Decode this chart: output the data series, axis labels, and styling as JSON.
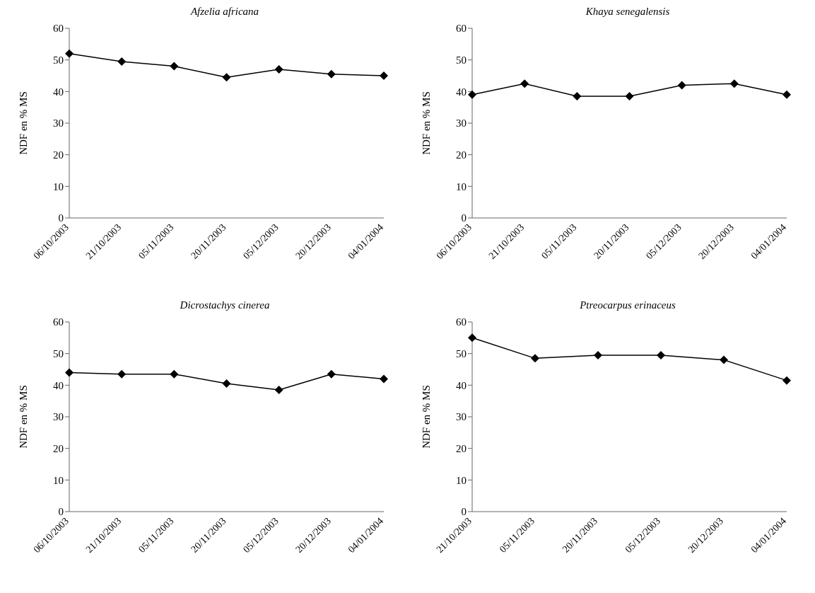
{
  "chart_data": [
    {
      "type": "line",
      "title": "Afzelia africana",
      "ylabel": "NDF en % MS",
      "categories": [
        "06/10/2003",
        "21/10/2003",
        "05/11/2003",
        "20/11/2003",
        "05/12/2003",
        "20/12/2003",
        "04/01/2004"
      ],
      "series": [
        {
          "color": "#000000",
          "values": [
            52,
            49.5,
            48,
            44.5,
            47,
            45.5,
            45
          ]
        }
      ],
      "ylim": [
        0,
        60
      ],
      "yticks": [
        0,
        10,
        20,
        30,
        40,
        50,
        60
      ],
      "grid": false,
      "legend": false,
      "marker": "diamond",
      "line_style": "solid"
    },
    {
      "type": "line",
      "title": "Khaya senegalensis",
      "ylabel": "NDF en % MS",
      "categories": [
        "06/10/2003",
        "21/10/2003",
        "05/11/2003",
        "20/11/2003",
        "05/12/2003",
        "20/12/2003",
        "04/01/2004"
      ],
      "series": [
        {
          "color": "#000000",
          "values": [
            39,
            42.5,
            38.5,
            38.5,
            42,
            42.5,
            39
          ]
        }
      ],
      "ylim": [
        0,
        60
      ],
      "yticks": [
        0,
        10,
        20,
        30,
        40,
        50,
        60
      ],
      "grid": false,
      "legend": false,
      "marker": "diamond",
      "line_style": "solid"
    },
    {
      "type": "line",
      "title": "Dicrostachys cinerea",
      "ylabel": "NDF en % MS",
      "categories": [
        "06/10/2003",
        "21/10/2003",
        "05/11/2003",
        "20/11/2003",
        "05/12/2003",
        "20/12/2003",
        "04/01/2004"
      ],
      "series": [
        {
          "color": "#000000",
          "values": [
            44,
            43.5,
            43.5,
            40.5,
            38.5,
            43.5,
            42
          ]
        }
      ],
      "ylim": [
        0,
        60
      ],
      "yticks": [
        0,
        10,
        20,
        30,
        40,
        50,
        60
      ],
      "grid": false,
      "legend": false,
      "marker": "diamond",
      "line_style": "solid"
    },
    {
      "type": "line",
      "title": "Ptreocarpus erinaceus",
      "ylabel": "NDF en % MS",
      "categories": [
        "21/10/2003",
        "05/11/2003",
        "20/11/2003",
        "05/12/2003",
        "20/12/2003",
        "04/01/2004"
      ],
      "series": [
        {
          "color": "#000000",
          "values": [
            55,
            48.5,
            49.5,
            49.5,
            48,
            41.5
          ]
        }
      ],
      "ylim": [
        0,
        60
      ],
      "yticks": [
        0,
        10,
        20,
        30,
        40,
        50,
        60
      ],
      "grid": false,
      "legend": false,
      "marker": "diamond",
      "line_style": "solid"
    }
  ]
}
